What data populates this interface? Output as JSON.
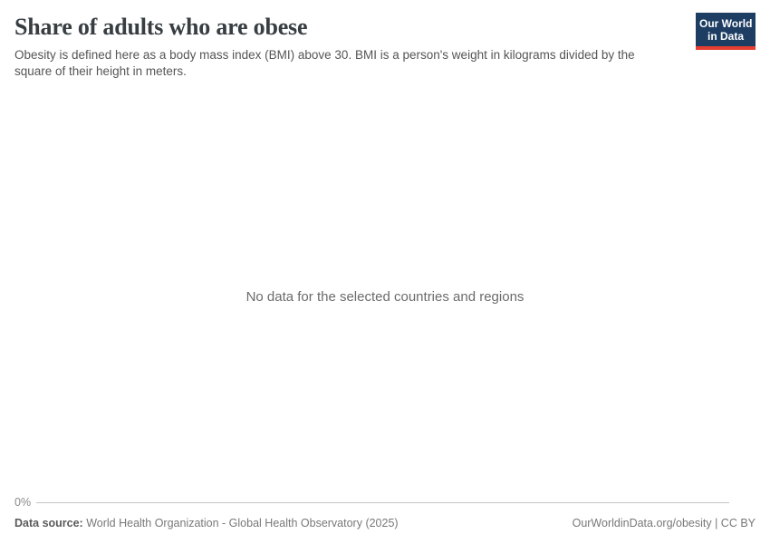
{
  "header": {
    "title": "Share of adults who are obese",
    "subtitle": "Obesity is defined here as a body mass index (BMI) above 30. BMI is a person's weight in kilograms divided by the square of their height in meters.",
    "logo": {
      "line1": "Our World",
      "line2": "in Data",
      "bg_color": "#1d3d63",
      "accent_color": "#e63e31"
    }
  },
  "chart": {
    "no_data_message": "No data for the selected countries and regions",
    "y_axis_tick_label": "0%"
  },
  "footer": {
    "source_label": "Data source:",
    "source_value": "World Health Organization - Global Health Observatory (2025)",
    "attribution": "OurWorldinData.org/obesity | CC BY"
  },
  "chart_data": {
    "type": "line",
    "title": "Share of adults who are obese",
    "subtitle": "Obesity is defined here as a body mass index (BMI) above 30. BMI is a person's weight in kilograms divided by the square of their height in meters.",
    "x": [],
    "series": [],
    "y_axis_ticks": [
      "0%"
    ],
    "grid": false,
    "legend": "none",
    "annotations": [
      "No data for the selected countries and regions"
    ]
  }
}
